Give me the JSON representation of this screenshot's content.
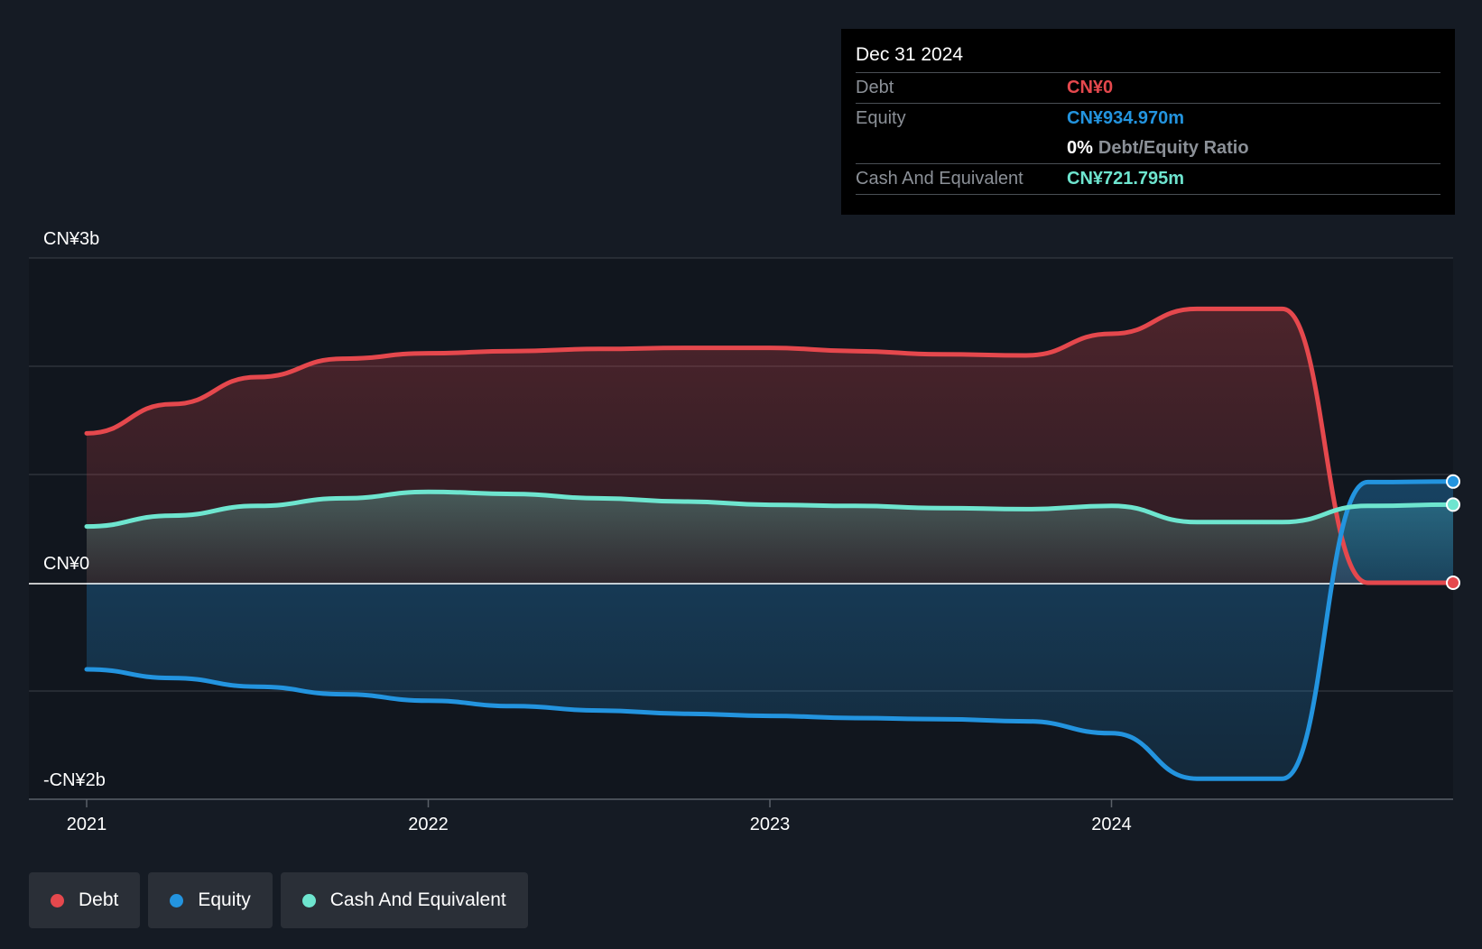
{
  "chart_data": {
    "type": "area",
    "x": [
      2021.0,
      2021.25,
      2021.5,
      2021.75,
      2022.0,
      2022.25,
      2022.5,
      2022.75,
      2023.0,
      2023.25,
      2023.5,
      2023.75,
      2024.0,
      2024.25,
      2024.5,
      2024.75,
      2025.0
    ],
    "series": [
      {
        "name": "Debt",
        "color": "#e5484d",
        "values": [
          1.38,
          1.65,
          1.9,
          2.07,
          2.12,
          2.14,
          2.16,
          2.17,
          2.17,
          2.14,
          2.11,
          2.1,
          2.3,
          2.53,
          2.53,
          0.0,
          0.0
        ]
      },
      {
        "name": "Equity",
        "color": "#2394df",
        "values": [
          -0.8,
          -0.88,
          -0.96,
          -1.03,
          -1.09,
          -1.14,
          -1.18,
          -1.21,
          -1.23,
          -1.25,
          -1.26,
          -1.28,
          -1.39,
          -1.81,
          -1.81,
          0.93,
          0.935
        ]
      },
      {
        "name": "Cash And Equivalent",
        "color": "#6ee5cf",
        "values": [
          0.52,
          0.62,
          0.71,
          0.78,
          0.84,
          0.82,
          0.78,
          0.75,
          0.72,
          0.71,
          0.69,
          0.68,
          0.71,
          0.56,
          0.56,
          0.71,
          0.722
        ]
      }
    ],
    "y_ticks": [
      {
        "value": 3,
        "label": "CN¥3b"
      },
      {
        "value": 0,
        "label": "CN¥0"
      },
      {
        "value": -2,
        "label": "-CN¥2b"
      }
    ],
    "x_ticks": [
      {
        "value": 2021,
        "label": "2021"
      },
      {
        "value": 2022,
        "label": "2022"
      },
      {
        "value": 2023,
        "label": "2023"
      },
      {
        "value": 2024,
        "label": "2024"
      }
    ],
    "xlim": [
      2021.0,
      2025.0
    ],
    "ylim": [
      -2,
      3
    ],
    "grid": true
  },
  "tooltip": {
    "date": "Dec 31 2024",
    "debt_label": "Debt",
    "debt_value": "CN¥0",
    "equity_label": "Equity",
    "equity_value": "CN¥934.970m",
    "ratio_value": "0%",
    "ratio_label": "Debt/Equity Ratio",
    "cash_label": "Cash And Equivalent",
    "cash_value": "CN¥721.795m"
  },
  "legend": {
    "items": [
      {
        "label": "Debt",
        "color": "#e5484d"
      },
      {
        "label": "Equity",
        "color": "#2394df"
      },
      {
        "label": "Cash And Equivalent",
        "color": "#6ee5cf"
      }
    ]
  }
}
